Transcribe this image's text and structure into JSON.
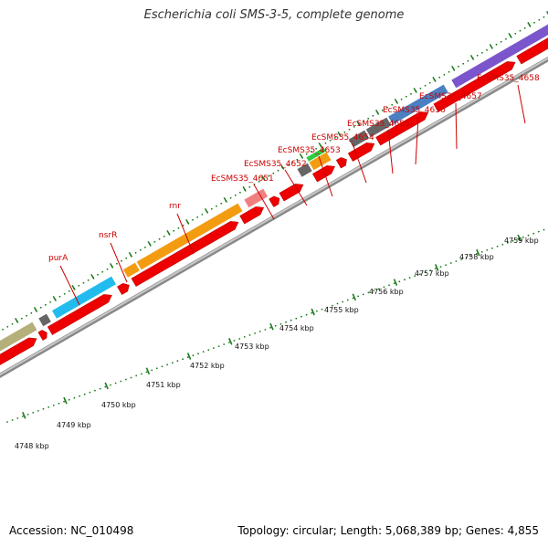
{
  "title": "Escherichia coli SMS-3-5, complete genome",
  "footer": {
    "accession": "Accession: NC_010498",
    "stats": "Topology: circular; Length: 5,068,389 bp; Genes: 4,855"
  },
  "colors": {
    "cds": "#ee0000",
    "label": "#cc0000",
    "backbone": "#aaaaaa",
    "tick": "#1a7a1a"
  },
  "gene_labels": [
    "purA",
    "nsrR",
    "rnr",
    "EcSMS35_4651",
    "EcSMS35_4652",
    "EcSMS35_4653",
    "EcSMS35_4654",
    "EcSMS35_4655",
    "EcSMS35_4656",
    "EcSMS35_4657",
    "EcSMS35_4658"
  ],
  "kbp_labels": [
    "4748 kbp",
    "4749 kbp",
    "4750 kbp",
    "4751 kbp",
    "4752 kbp",
    "4753 kbp",
    "4754 kbp",
    "4755 kbp",
    "4756 kbp",
    "4757 kbp",
    "4758 kbp",
    "4759 kbp"
  ]
}
